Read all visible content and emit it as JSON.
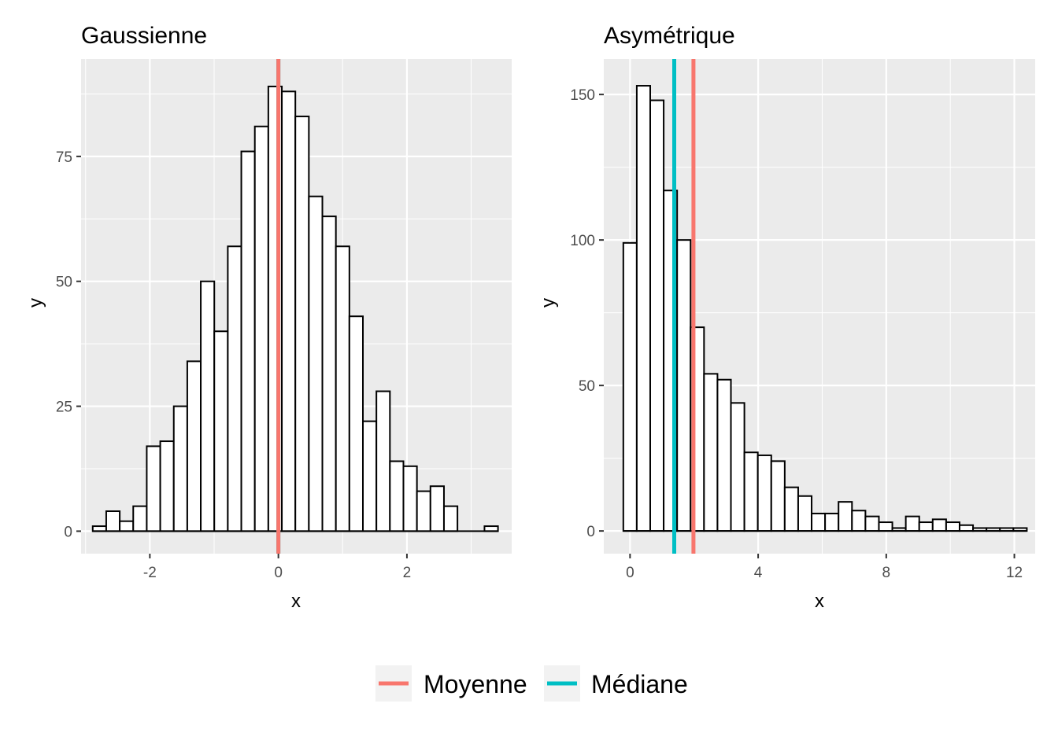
{
  "legend": {
    "items": [
      {
        "label": "Moyenne",
        "color": "#F8766D"
      },
      {
        "label": "Médiane",
        "color": "#00BFC4"
      }
    ],
    "placement": "bottom"
  },
  "colors": {
    "panel_background": "#EBEBEB",
    "grid": "#FFFFFF",
    "bar_fill": "#FFFFFF",
    "bar_outline": "#000000"
  },
  "chart_data": [
    {
      "type": "bar",
      "title": "Gaussienne",
      "xlabel": "x",
      "ylabel": "y",
      "xlim": [
        -3.07,
        3.63
      ],
      "ylim": [
        -4.5,
        94.5
      ],
      "x_ticks": [
        -2,
        0,
        2
      ],
      "x_tick_labels": [
        "-2",
        "0",
        "2"
      ],
      "y_ticks": [
        0,
        25,
        50,
        75
      ],
      "y_tick_labels": [
        "0",
        "25",
        "50",
        "75"
      ],
      "grid": true,
      "bin_width": 0.2102,
      "bin_start": -2.889,
      "counts": [
        1,
        4,
        2,
        5,
        17,
        18,
        25,
        34,
        50,
        40,
        57,
        76,
        81,
        89,
        88,
        83,
        67,
        63,
        57,
        43,
        22,
        28,
        14,
        13,
        8,
        9,
        5,
        0,
        0,
        1
      ],
      "vlines": [
        {
          "name": "Moyenne",
          "x": 0.0
        },
        {
          "name": "Médiane",
          "x": 0.0
        }
      ]
    },
    {
      "type": "bar",
      "title": "Asymétrique",
      "xlabel": "x",
      "ylabel": "y",
      "xlim": [
        -0.82,
        12.65
      ],
      "ylim": [
        -7.8,
        162.2
      ],
      "x_ticks": [
        0,
        4,
        8,
        12
      ],
      "x_tick_labels": [
        "0",
        "4",
        "8",
        "12"
      ],
      "y_ticks": [
        0,
        50,
        100,
        150
      ],
      "y_tick_labels": [
        "0",
        "50",
        "100",
        "150"
      ],
      "grid": true,
      "bin_width": 0.42,
      "bin_start": -0.21,
      "counts": [
        99,
        153,
        148,
        117,
        100,
        70,
        54,
        52,
        44,
        27,
        26,
        24,
        15,
        12,
        6,
        6,
        10,
        7,
        5,
        3,
        1,
        5,
        3,
        4,
        3,
        2,
        1,
        1,
        1,
        1
      ],
      "vlines": [
        {
          "name": "Moyenne",
          "x": 1.98
        },
        {
          "name": "Médiane",
          "x": 1.38
        }
      ]
    }
  ]
}
